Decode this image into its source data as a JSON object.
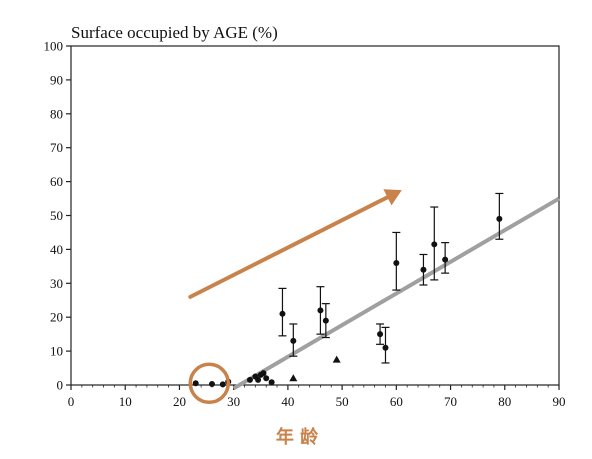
{
  "chart_data": {
    "type": "scatter",
    "title": "Surface occupied by AGE (%)",
    "xlabel": "年 龄",
    "ylabel": "",
    "xlim": [
      0,
      90
    ],
    "ylim": [
      0,
      100
    ],
    "x_ticks": [
      "0",
      "10",
      "20",
      "30",
      "40",
      "50",
      "60",
      "70",
      "80",
      "90"
    ],
    "y_ticks": [
      "0",
      "10",
      "20",
      "30",
      "40",
      "50",
      "60",
      "70",
      "80",
      "90",
      "100"
    ],
    "grid": false,
    "series": [
      {
        "marker": "circle",
        "points": [
          {
            "x": 23,
            "y": 0.5
          },
          {
            "x": 26,
            "y": 0.3
          },
          {
            "x": 28,
            "y": 0.2
          },
          {
            "x": 29,
            "y": 1.0
          },
          {
            "x": 33,
            "y": 1.5
          },
          {
            "x": 34,
            "y": 2.5
          },
          {
            "x": 34.5,
            "y": 1.5
          },
          {
            "x": 35,
            "y": 3.0
          },
          {
            "x": 35.5,
            "y": 3.5
          },
          {
            "x": 36,
            "y": 2.0
          },
          {
            "x": 37,
            "y": 0.8
          },
          {
            "x": 39,
            "y": 21,
            "err": [
              14.5,
              28.5
            ]
          },
          {
            "x": 41,
            "y": 13,
            "err": [
              8.5,
              18.0
            ]
          },
          {
            "x": 46,
            "y": 22,
            "err": [
              15.0,
              29.0
            ]
          },
          {
            "x": 47,
            "y": 19,
            "err": [
              14.0,
              24.0
            ]
          },
          {
            "x": 57,
            "y": 15,
            "err": [
              12.0,
              18.0
            ]
          },
          {
            "x": 58,
            "y": 11,
            "err": [
              6.5,
              17.0
            ]
          },
          {
            "x": 60,
            "y": 36,
            "err": [
              28.0,
              45.0
            ]
          },
          {
            "x": 65,
            "y": 34,
            "err": [
              29.5,
              38.5
            ]
          },
          {
            "x": 67,
            "y": 41.5,
            "err": [
              31.0,
              52.5
            ]
          },
          {
            "x": 69,
            "y": 37,
            "err": [
              33.0,
              42.0
            ]
          },
          {
            "x": 79,
            "y": 49,
            "err": [
              43.0,
              56.5
            ]
          }
        ]
      },
      {
        "marker": "triangle",
        "points": [
          {
            "x": 41,
            "y": 2.0
          },
          {
            "x": 49,
            "y": 7.5
          }
        ]
      }
    ],
    "trend_line": {
      "x": [
        30,
        90
      ],
      "y": [
        -1,
        55
      ],
      "color": "#a0a0a0"
    },
    "annotations": {
      "arrow": {
        "from": [
          22,
          26
        ],
        "to": [
          61,
          57.5
        ],
        "color": "#c8824a"
      },
      "circle": {
        "center": [
          25.5,
          0.5
        ],
        "color": "#c8824a"
      }
    },
    "xlabel_color": "#c8824a"
  }
}
